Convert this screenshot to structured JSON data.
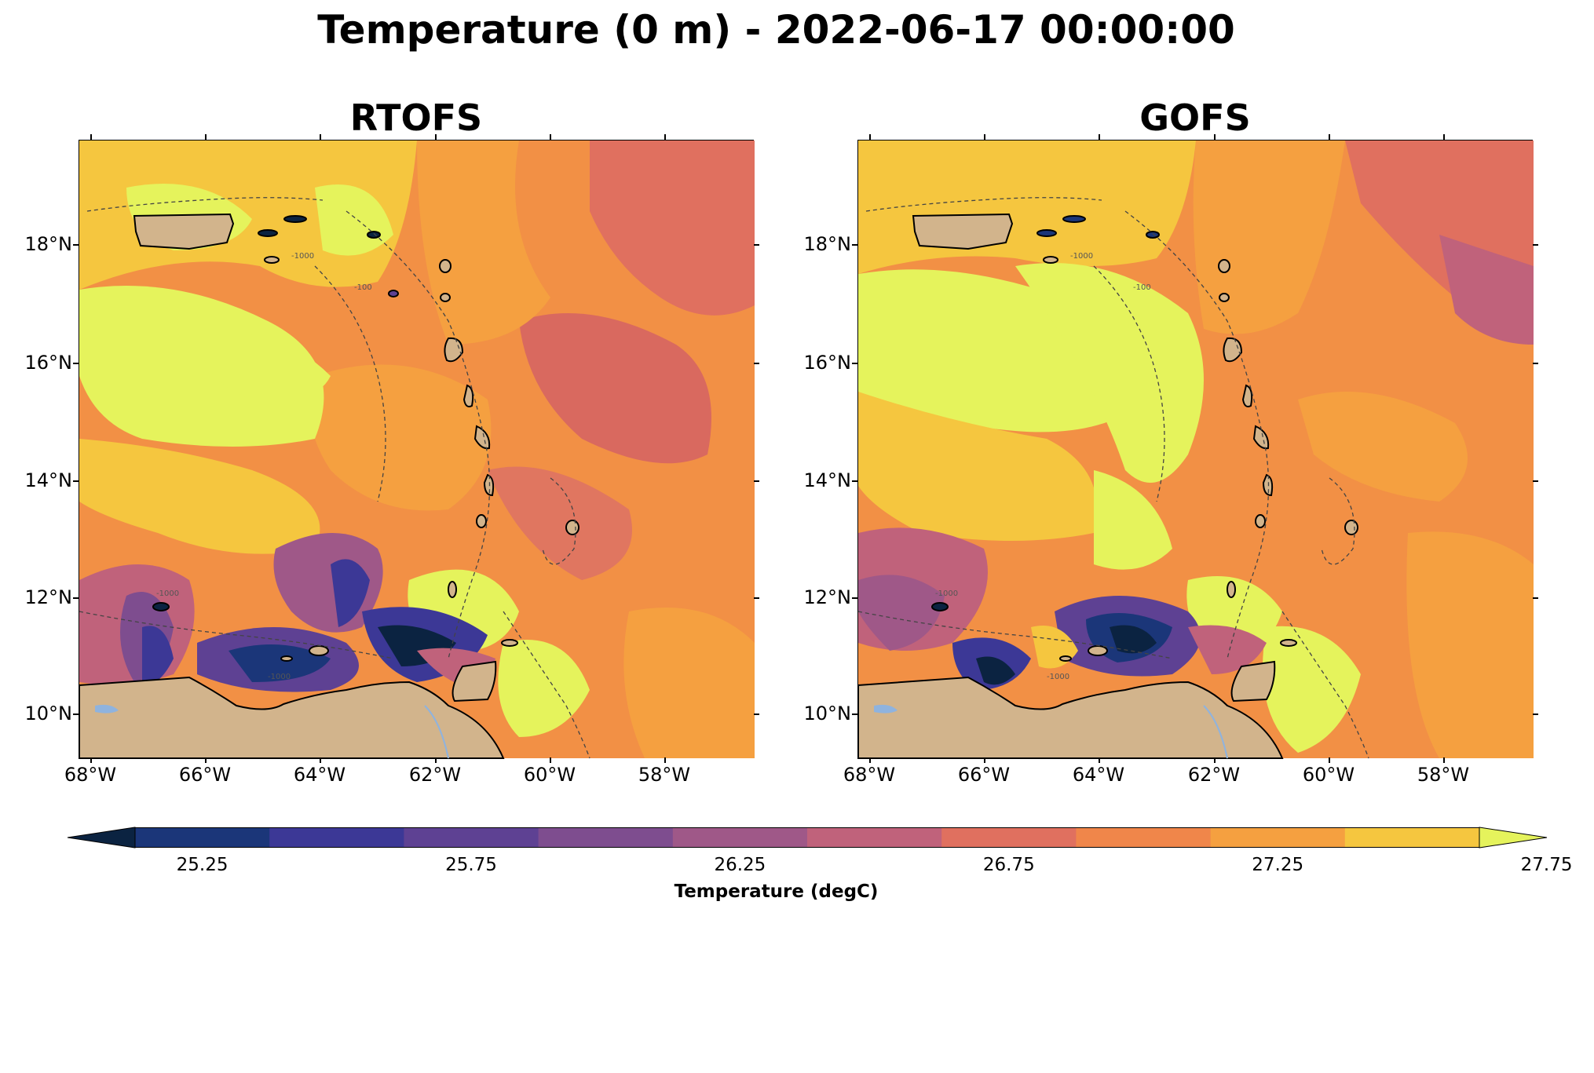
{
  "suptitle": "Temperature (0 m) - 2022-06-17 00:00:00",
  "panels": [
    {
      "title": "RTOFS"
    },
    {
      "title": "GOFS"
    }
  ],
  "lat_ticks": [
    "18°N",
    "16°N",
    "14°N",
    "12°N",
    "10°N"
  ],
  "lon_ticks": [
    "68°W",
    "66°W",
    "64°W",
    "62°W",
    "60°W",
    "58°W"
  ],
  "colorbar": {
    "title": "Temperature (degC)",
    "tick_labels": [
      "25.25",
      "25.75",
      "26.25",
      "26.75",
      "27.25",
      "27.75"
    ],
    "colors": [
      "#0b2341",
      "#1b3679",
      "#3c3896",
      "#5e4193",
      "#7e4d8f",
      "#9f5888",
      "#c0627b",
      "#e0705f",
      "#f0864a",
      "#f5a040",
      "#f5c63f",
      "#e5f35c"
    ]
  },
  "contour_labels": [
    "-100",
    "-1000"
  ]
}
